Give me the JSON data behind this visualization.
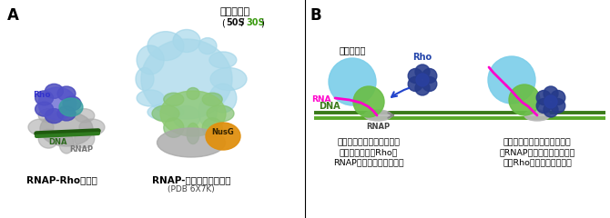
{
  "panel_A_label": "A",
  "panel_B_label": "B",
  "left_complex_label": "RNAP-Rho複合体",
  "right_complex_label": "RNAP-リボソーム複合体",
  "right_complex_sublabel": "(PDB 6X7K)",
  "ribosome_label": "リボソーム",
  "ribosome_sublabel_50S": "50S",
  "ribosome_sublabel_30S": "30S",
  "rho_label_left": "Rho",
  "dna_label": "DNA",
  "rnap_label": "RNAP",
  "nusg_label": "NusG",
  "diagram_ribosome_label": "リボソーム",
  "diagram_rho_label": "Rho",
  "diagram_rna_label": "RNA",
  "diagram_dna_label": "DNA",
  "diagram_rnap_label": "RNAP",
  "caption_left_line1": "転写と翻訳がカップリング",
  "caption_left_line2": "しているとき、Rhoは",
  "caption_left_line3": "RNAPにアクセスできない",
  "caption_right_line1": "翻訳が停止するとリボソーム",
  "caption_right_line2": "とRNAPの間にスペースが生",
  "caption_right_line3": "じ、Rhoがアクセスできる",
  "bg_color": "#ffffff",
  "dna_color": "#3a6b1a",
  "rna_color": "#ff00cc",
  "ribosome_circle_color": "#7dcfea",
  "green_circle_color": "#6abe48",
  "rho_cluster_color": "#2244aa",
  "rnap_ellipse_color": "#b8b8b8",
  "arrow_color": "#888888",
  "inhibit_arrow_color": "#2244cc",
  "dna_line_color1": "#3a7a1a",
  "dna_line_color2": "#5aaa2a",
  "color_50S": "#111111",
  "color_30S": "#3a9a10"
}
